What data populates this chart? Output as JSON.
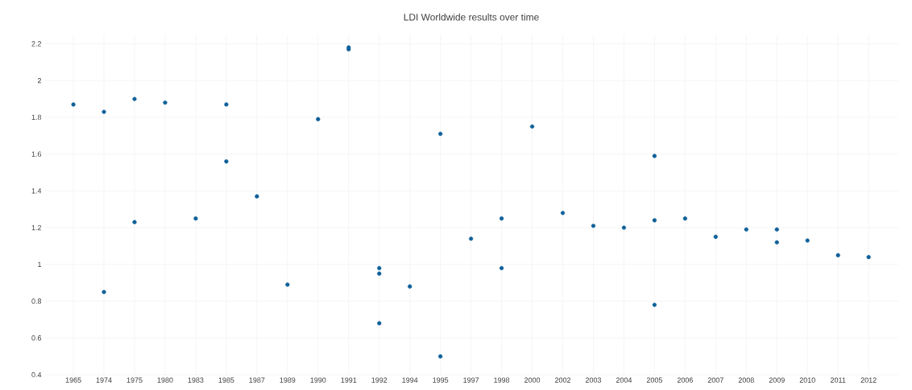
{
  "chart_data": {
    "type": "scatter",
    "title": "LDI Worldwide results over time",
    "categories": [
      "1965",
      "1974",
      "1975",
      "1980",
      "1983",
      "1985",
      "1987",
      "1989",
      "1990",
      "1991",
      "1992",
      "1994",
      "1995",
      "1997",
      "1998",
      "2000",
      "2002",
      "2003",
      "2004",
      "2005",
      "2006",
      "2007",
      "2008",
      "2009",
      "2010",
      "2011",
      "2012"
    ],
    "series": [
      {
        "color": "#0f6199",
        "values": [
          1.87,
          1.83,
          1.9,
          1.88,
          1.25,
          1.87,
          1.37,
          0.89,
          1.79,
          2.18,
          0.98,
          0.88,
          1.71,
          1.14,
          1.25,
          1.75,
          1.28,
          1.21,
          1.2,
          1.59,
          1.25,
          1.15,
          1.19,
          1.19,
          1.13,
          1.05,
          1.04
        ]
      },
      {
        "color": "#0f6199",
        "values": [
          null,
          0.85,
          1.23,
          null,
          null,
          1.56,
          null,
          null,
          null,
          2.17,
          0.95,
          null,
          0.5,
          null,
          0.98,
          null,
          null,
          null,
          null,
          1.24,
          null,
          null,
          null,
          1.12,
          null,
          null,
          null
        ]
      },
      {
        "color": "#0f6199",
        "values": [
          null,
          null,
          null,
          null,
          null,
          null,
          null,
          null,
          null,
          null,
          0.68,
          null,
          null,
          null,
          null,
          null,
          null,
          null,
          null,
          0.78,
          null,
          null,
          null,
          null,
          null,
          null,
          null
        ]
      }
    ],
    "marker": "circle",
    "ylim": [
      0.4,
      2.25
    ],
    "yticks": [
      0.4,
      0.6,
      0.8,
      1,
      1.2,
      1.4,
      1.6,
      1.8,
      2,
      2.2
    ],
    "grid": true
  }
}
